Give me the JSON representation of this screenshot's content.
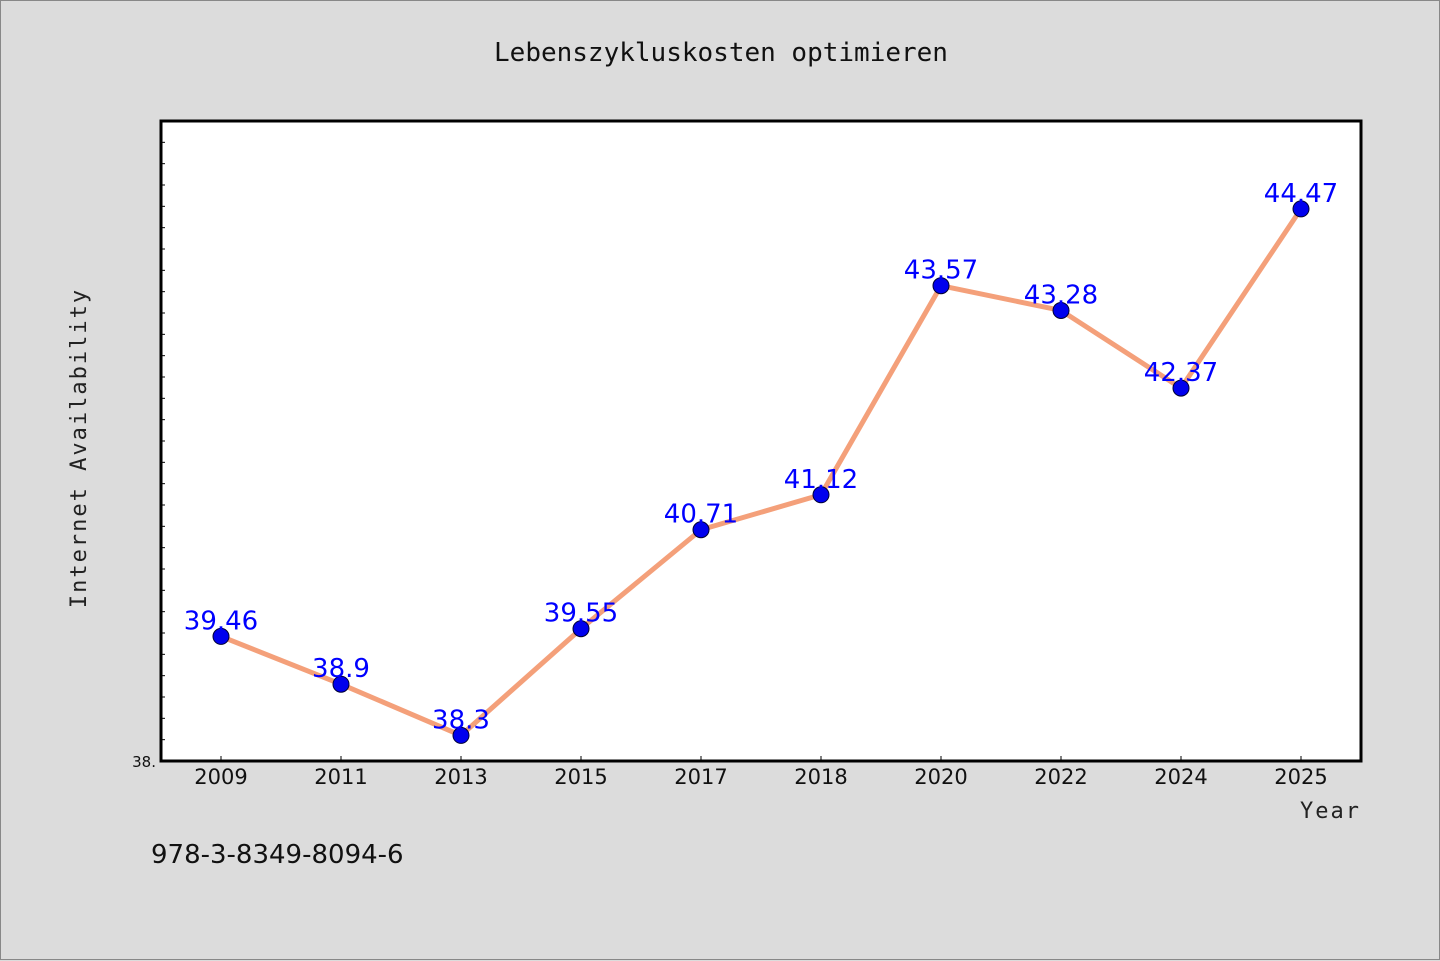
{
  "footer": {
    "isbn": "978-3-8349-8094-6"
  },
  "colors": {
    "background": "#dcdcdc",
    "plot_bg": "#ffffff",
    "line": "#f4a07a",
    "marker": "#0000ee",
    "labels": "#0000ff"
  },
  "chart_data": {
    "type": "line",
    "title": "Lebenszykluskosten optimieren",
    "xlabel": "Year",
    "ylabel": "Internet Availability",
    "categories": [
      "2009",
      "2011",
      "2013",
      "2015",
      "2017",
      "2018",
      "2020",
      "2022",
      "2024",
      "2025"
    ],
    "series": [
      {
        "values": [
          39.46,
          38.9,
          38.3,
          39.55,
          40.71,
          41.12,
          43.57,
          43.28,
          42.37,
          44.47
        ]
      }
    ],
    "data_labels": [
      "39.46",
      "38.9",
      "38.3",
      "39.55",
      "40.71",
      "41.12",
      "43.57",
      "43.28",
      "42.37",
      "44.47"
    ],
    "ylim": [
      38.0,
      45.5
    ],
    "ytick_labels": [
      "38."
    ],
    "grid": false,
    "legend": "none"
  }
}
